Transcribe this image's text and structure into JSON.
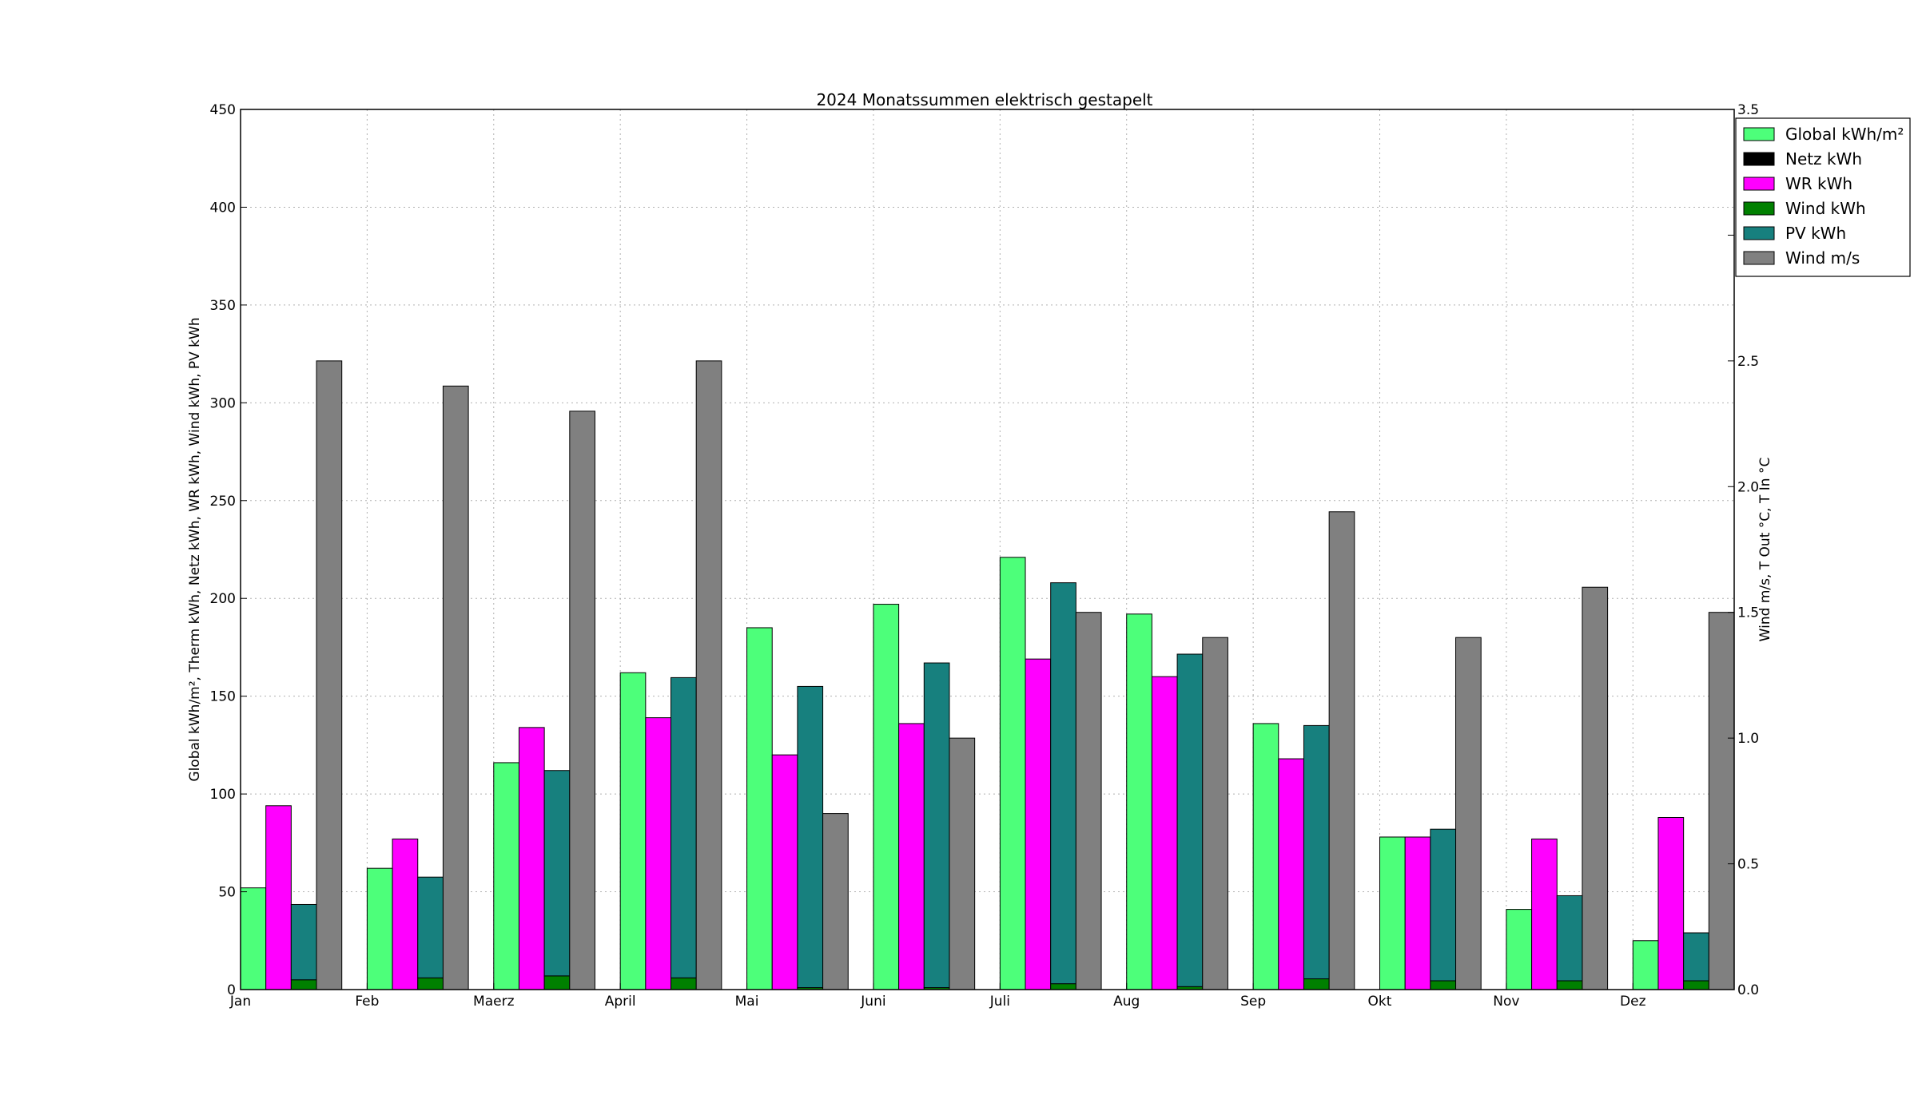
{
  "chart_data": {
    "type": "bar",
    "title": "2024 Monatssummen elektrisch gestapelt",
    "ylabel_left": "Global kWh/m², Therm kWh, Netz kWh, WR kWh, Wind kWh, PV kWh",
    "ylabel_right": "Wind m/s, T Out °C, T In °C",
    "ylim_left": [
      0,
      450
    ],
    "ylim_right": [
      0,
      3.5
    ],
    "yticks_left": [
      "0",
      "50",
      "100",
      "150",
      "200",
      "250",
      "300",
      "350",
      "400",
      "450"
    ],
    "yticks_right": [
      "0.0",
      "0.5",
      "1.0",
      "1.5",
      "2.0",
      "2.5",
      "3.0",
      "3.5"
    ],
    "grid": true,
    "legend_position": "top-right",
    "categories": [
      "Jan",
      "Feb",
      "Maerz",
      "April",
      "Mai",
      "Juni",
      "Juli",
      "Aug",
      "Sep",
      "Okt",
      "Nov",
      "Dez"
    ],
    "series": [
      {
        "name": "Global kWh/m²",
        "axis": "left",
        "color": "#4dff7a",
        "values": [
          52,
          62,
          116,
          162,
          185,
          197,
          221,
          192,
          136,
          78,
          41,
          25
        ]
      },
      {
        "name": "Netz kWh",
        "axis": "left",
        "color": "#000000",
        "values": [
          0,
          0,
          0,
          0,
          0,
          0,
          0,
          0,
          0,
          0,
          0,
          0
        ]
      },
      {
        "name": "WR kWh",
        "axis": "left",
        "color": "#ff00ff",
        "values": [
          94,
          77,
          134,
          139,
          120,
          136,
          169,
          160,
          118,
          78,
          77,
          88
        ]
      },
      {
        "name": "Wind kWh",
        "axis": "left",
        "color": "#008000",
        "values": [
          5,
          6,
          7,
          6,
          1,
          1,
          3,
          1.5,
          5.5,
          4.5,
          4.5,
          4.5
        ]
      },
      {
        "name": "PV kWh",
        "axis": "left",
        "color": "#17807e",
        "values": [
          38.5,
          51.5,
          105,
          153.5,
          154,
          166,
          205,
          170,
          129.5,
          77.5,
          43.5,
          24.5
        ]
      },
      {
        "name": "Wind m/s",
        "axis": "right",
        "color": "#808080",
        "values": [
          2.5,
          2.4,
          2.3,
          2.5,
          0.7,
          1.0,
          1.5,
          1.4,
          1.9,
          1.4,
          1.6,
          1.5
        ]
      }
    ]
  }
}
